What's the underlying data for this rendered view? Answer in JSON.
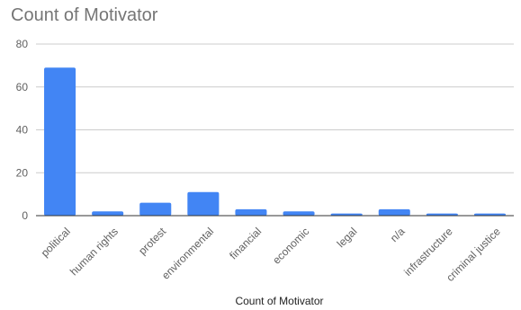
{
  "chart_data": {
    "type": "bar",
    "title": "Count of Motivator",
    "xlabel": "Count of Motivator",
    "ylabel": "",
    "categories": [
      "political",
      "human rights",
      "protest",
      "environmental",
      "financial",
      "economic",
      "legal",
      "n/a",
      "infrastructure",
      "criminal justice"
    ],
    "values": [
      69,
      2,
      6,
      11,
      3,
      2,
      1,
      3,
      1,
      1
    ],
    "ylim": [
      0,
      80
    ],
    "yticks": [
      0,
      20,
      40,
      60,
      80
    ],
    "grid": true,
    "legend": "none",
    "bar_color": "#4285f4",
    "grid_color": "#cccccc",
    "baseline_color": "#333333"
  }
}
